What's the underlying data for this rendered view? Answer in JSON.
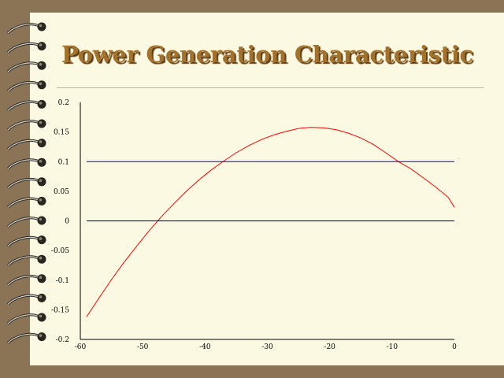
{
  "title": "Power Generation Characteristic",
  "colors": {
    "background": "#8b7355",
    "slide": "#fcf9e3",
    "title": "#a2722c",
    "curve": "#ff0000",
    "reference": "#0000cc"
  },
  "chart_data": {
    "type": "line",
    "title": "Power Generation Characteristic",
    "xlabel": "",
    "ylabel": "",
    "xlim": [
      -60,
      0
    ],
    "ylim": [
      -0.2,
      0.2
    ],
    "xticks": [
      "-60",
      "-50",
      "-40",
      "-30",
      "-20",
      "-10",
      "0"
    ],
    "yticks": [
      "0.2",
      "0.15",
      "0.1",
      "0.05",
      "0",
      "-0.05",
      "-0.1",
      "-0.15",
      "-0.2"
    ],
    "grid": false,
    "series": [
      {
        "color": "#ff0000",
        "x": [
          -59,
          -57,
          -55,
          -53,
          -51,
          -49,
          -47,
          -45,
          -43,
          -41,
          -39,
          -37,
          -35,
          -33,
          -31,
          -29,
          -27,
          -25,
          -23,
          -21,
          -19,
          -17,
          -15,
          -13,
          -11,
          -9,
          -7,
          -5,
          -3,
          -1,
          0
        ],
        "y": [
          -0.162,
          -0.13,
          -0.099,
          -0.07,
          -0.043,
          -0.017,
          0.007,
          0.029,
          0.05,
          0.069,
          0.086,
          0.101,
          0.115,
          0.127,
          0.137,
          0.145,
          0.151,
          0.156,
          0.158,
          0.157,
          0.154,
          0.148,
          0.14,
          0.129,
          0.115,
          0.1,
          0.088,
          0.073,
          0.057,
          0.04,
          0.023
        ]
      },
      {
        "color": "#0000cc",
        "x": [
          -59,
          0
        ],
        "y": [
          0.1,
          0.1
        ]
      },
      {
        "color": "#000000",
        "x": [
          -59,
          0
        ],
        "y": [
          0,
          0
        ]
      }
    ]
  }
}
